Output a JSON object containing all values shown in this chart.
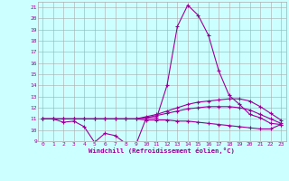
{
  "xlabel": "Windchill (Refroidissement éolien,°C)",
  "hours": [
    0,
    1,
    2,
    3,
    4,
    5,
    6,
    7,
    8,
    9,
    10,
    11,
    12,
    13,
    14,
    15,
    16,
    17,
    18,
    19,
    20,
    21,
    22,
    23
  ],
  "line1": [
    11.0,
    11.0,
    10.7,
    10.8,
    10.3,
    8.9,
    9.7,
    9.5,
    8.8,
    8.7,
    11.1,
    11.1,
    14.0,
    19.3,
    21.2,
    20.3,
    18.5,
    15.3,
    13.1,
    12.3,
    11.4,
    11.1,
    10.6,
    10.5
  ],
  "line2": [
    11.0,
    11.0,
    11.0,
    11.0,
    11.0,
    11.0,
    11.0,
    11.0,
    11.0,
    11.0,
    11.2,
    11.4,
    11.7,
    12.0,
    12.3,
    12.5,
    12.6,
    12.7,
    12.8,
    12.8,
    12.6,
    12.1,
    11.5,
    10.9
  ],
  "line3": [
    11.0,
    11.0,
    11.0,
    11.0,
    11.0,
    11.0,
    11.0,
    11.0,
    11.0,
    11.0,
    11.1,
    11.3,
    11.5,
    11.7,
    11.9,
    12.0,
    12.1,
    12.1,
    12.1,
    12.0,
    11.8,
    11.4,
    11.0,
    10.6
  ],
  "line4": [
    11.0,
    11.0,
    11.0,
    11.0,
    11.0,
    11.0,
    11.0,
    11.0,
    11.0,
    11.0,
    10.9,
    10.9,
    10.9,
    10.8,
    10.8,
    10.7,
    10.6,
    10.5,
    10.4,
    10.3,
    10.2,
    10.1,
    10.1,
    10.5
  ],
  "line_color": "#990099",
  "bg_color": "#ccffff",
  "grid_color": "#aaaaaa",
  "ylim": [
    9,
    21.5
  ],
  "yticks": [
    9,
    10,
    11,
    12,
    13,
    14,
    15,
    16,
    17,
    18,
    19,
    20,
    21
  ],
  "xlim": [
    -0.5,
    23.5
  ],
  "xticks": [
    0,
    1,
    2,
    3,
    4,
    5,
    6,
    7,
    8,
    9,
    10,
    11,
    12,
    13,
    14,
    15,
    16,
    17,
    18,
    19,
    20,
    21,
    22,
    23
  ]
}
